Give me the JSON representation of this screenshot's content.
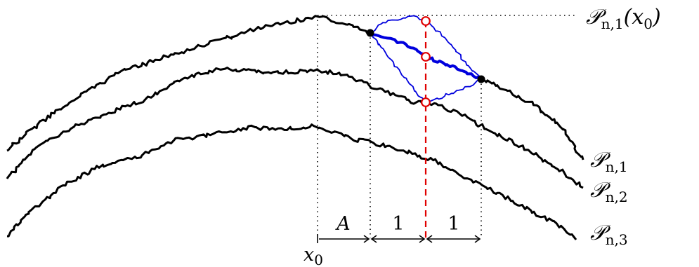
{
  "curves": [
    {
      "id": "P1",
      "label_main": "𝒫",
      "label_sub": "n,1"
    },
    {
      "id": "P2",
      "label_main": "𝒫",
      "label_sub": "n,2"
    },
    {
      "id": "P3",
      "label_main": "𝒫",
      "label_sub": "n,3"
    }
  ],
  "top_label": {
    "main": "𝒫",
    "sub": "n,1",
    "arg": "(x",
    "arg_sub": "0",
    "close": ")"
  },
  "x0_label": {
    "main": "x",
    "sub": "0"
  },
  "intervals": [
    {
      "label": "A"
    },
    {
      "label": "1"
    },
    {
      "label": "1"
    }
  ],
  "colors": {
    "curve": "#000000",
    "bridge": "#0000dd",
    "marker": "#e00000",
    "guide": "#000000"
  }
}
